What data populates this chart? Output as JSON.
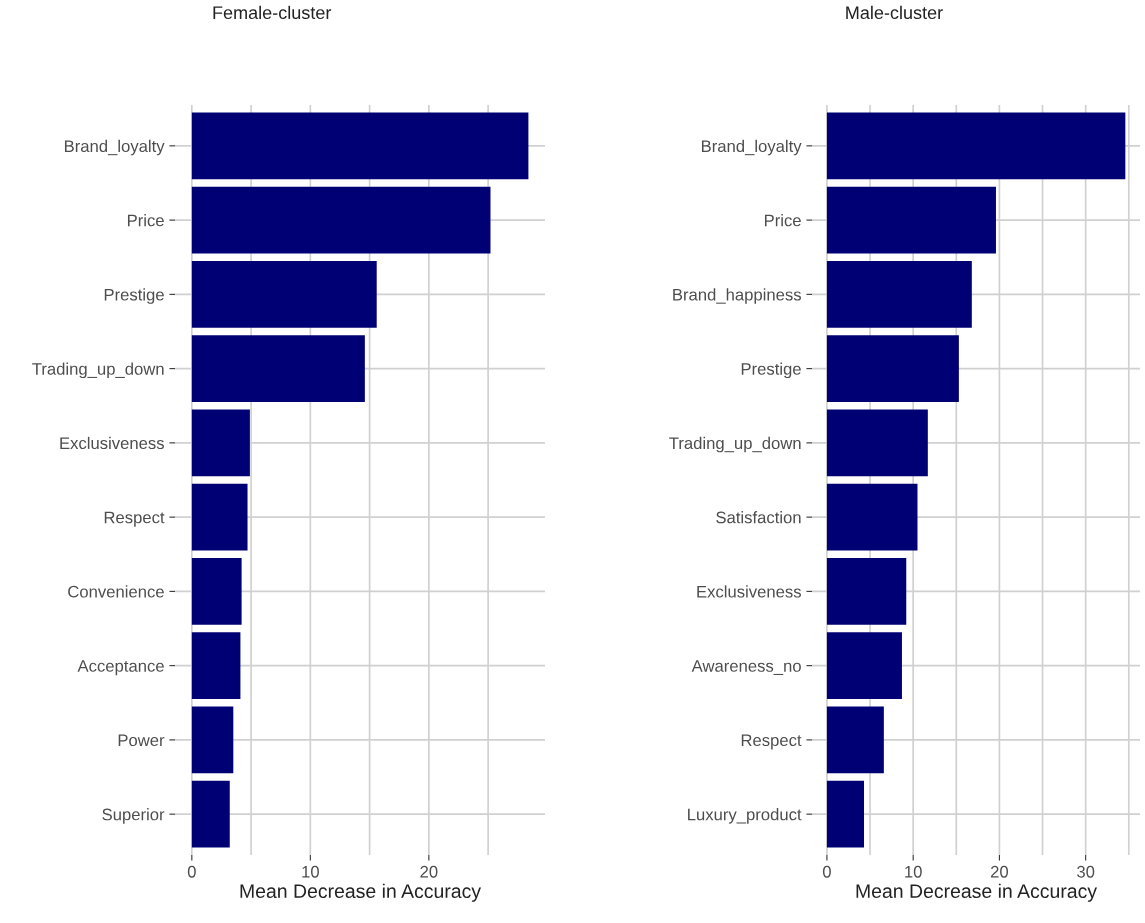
{
  "chart_data": [
    {
      "type": "bar",
      "orientation": "horizontal",
      "title": "Female-cluster",
      "xlabel": "Mean Decrease in Accuracy",
      "categories": [
        "Brand_loyalty",
        "Price",
        "Prestige",
        "Trading_up_down",
        "Exclusiveness",
        "Respect",
        "Convenience",
        "Acceptance",
        "Power",
        "Superior"
      ],
      "values": [
        28.4,
        25.2,
        15.6,
        14.6,
        4.9,
        4.7,
        4.2,
        4.1,
        3.5,
        3.2
      ],
      "color": "#000075",
      "xlim": [
        -1.42,
        29.8
      ],
      "xticks": [
        0,
        {
          "value": 5,
          "label": null
        },
        10,
        {
          "value": 15,
          "label": null
        },
        20,
        {
          "value": 25,
          "label": null
        }
      ],
      "grid": true
    },
    {
      "type": "bar",
      "orientation": "horizontal",
      "title": "Male-cluster",
      "xlabel": "Mean Decrease in Accuracy",
      "categories": [
        "Brand_loyalty",
        "Price",
        "Brand_happiness",
        "Prestige",
        "Trading_up_down",
        "Satisfaction",
        "Exclusiveness",
        "Awareness_no",
        "Respect",
        "Luxury_product"
      ],
      "values": [
        34.6,
        19.6,
        16.8,
        15.3,
        11.7,
        10.5,
        9.2,
        8.7,
        6.6,
        4.3
      ],
      "color": "#000075",
      "xlim": [
        -1.73,
        36.3
      ],
      "xticks": [
        0,
        {
          "value": 5,
          "label": null
        },
        10,
        {
          "value": 15,
          "label": null
        },
        20,
        {
          "value": 25,
          "label": null
        },
        30,
        {
          "value": 35,
          "label": null
        }
      ],
      "grid": true
    }
  ]
}
